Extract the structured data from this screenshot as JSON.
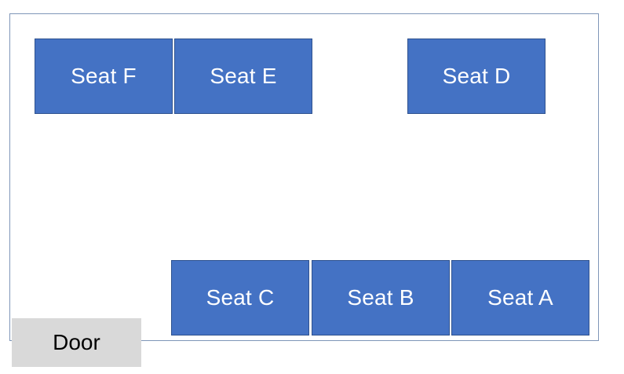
{
  "colors": {
    "seat_fill": "#4472c4",
    "seat_border": "#2f528f",
    "seat_text": "#ffffff",
    "door_fill": "#d9d9d9",
    "room_border": "#7f96b8"
  },
  "seats": {
    "f": "Seat F",
    "e": "Seat E",
    "d": "Seat D",
    "c": "Seat C",
    "b": "Seat B",
    "a": "Seat A"
  },
  "door": {
    "label": "Door"
  }
}
